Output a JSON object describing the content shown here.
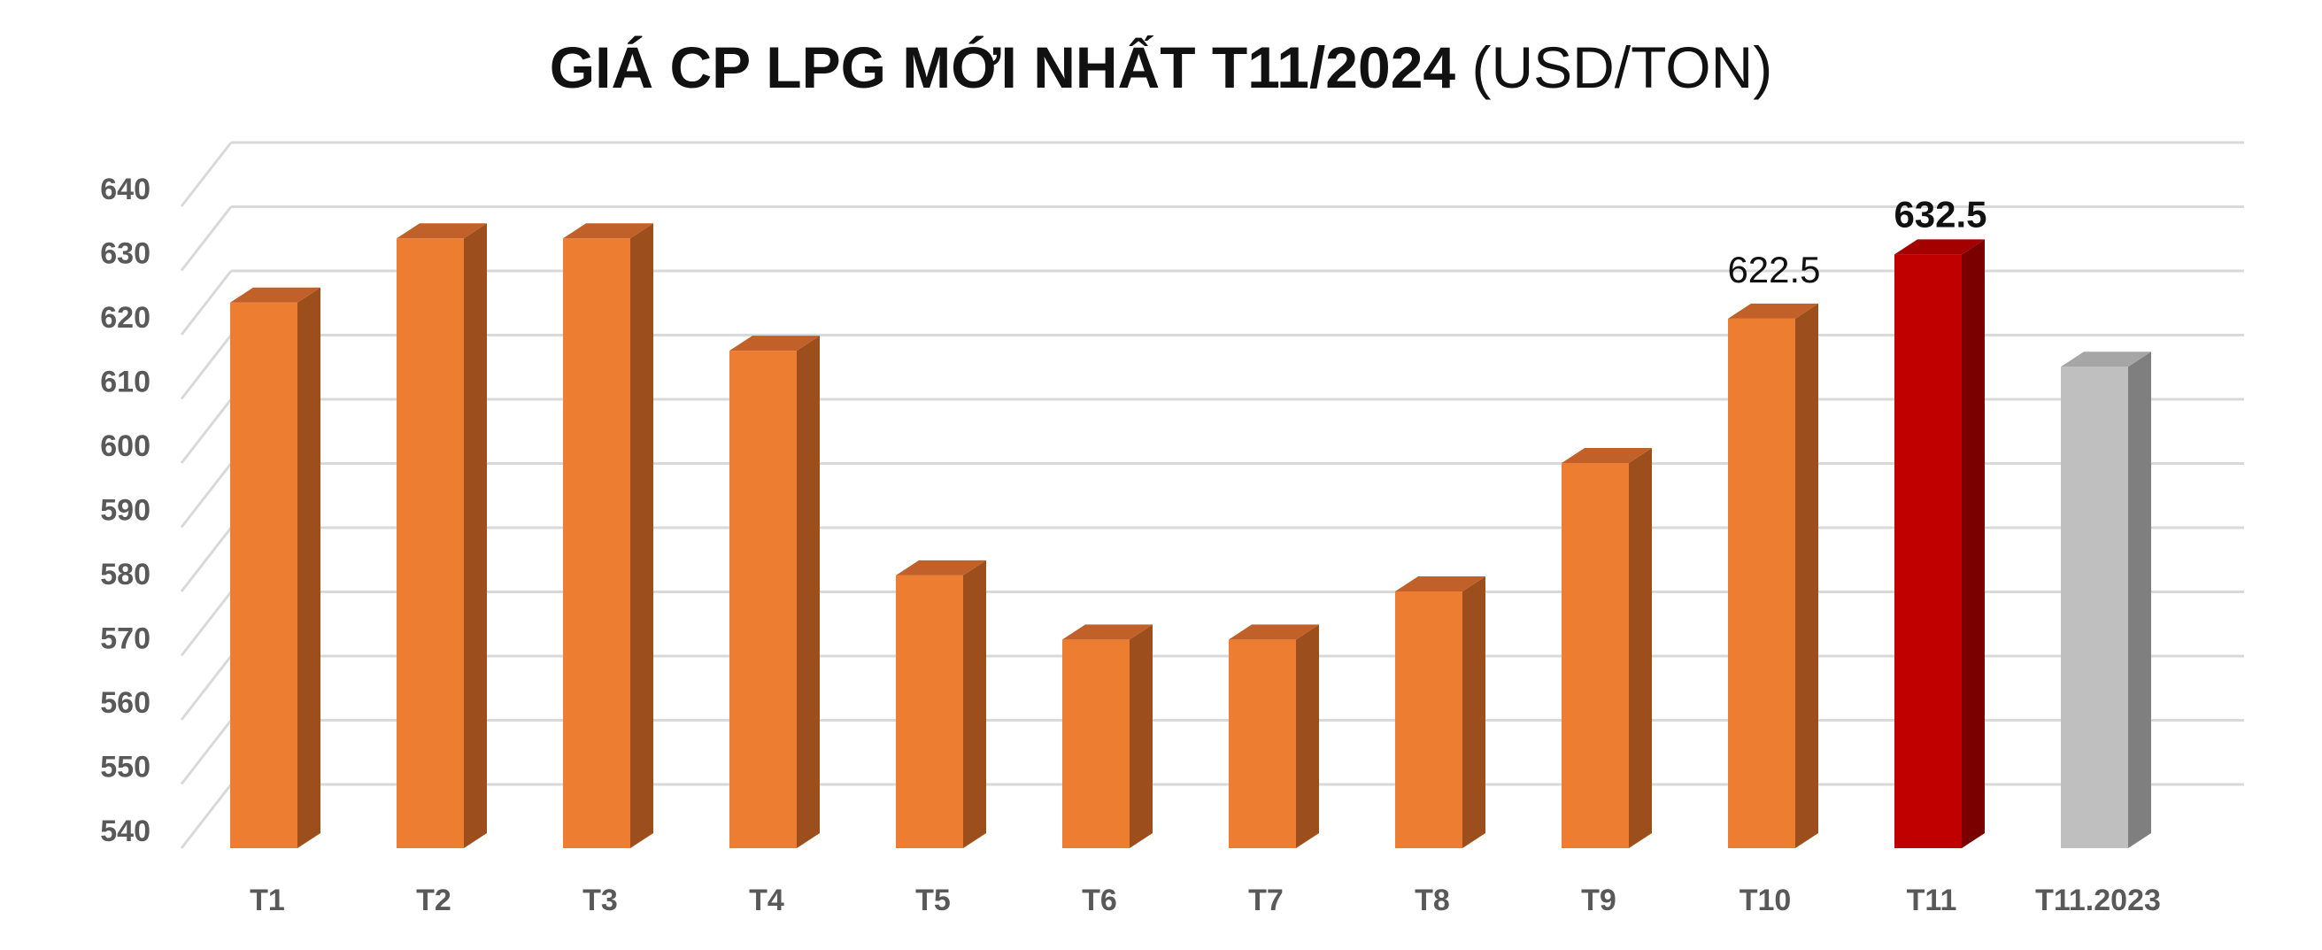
{
  "title": {
    "main": "GIÁ CP LPG MỚI NHẤT T11/2024",
    "unit": "(USD/TON)"
  },
  "colors": {
    "bar_front": "#ED7D31",
    "bar_side": "#9C4F1C",
    "bar_top": "#C2602A",
    "highlight_front": "#C00000",
    "highlight_side": "#7A0000",
    "highlight_top": "#A50000",
    "compare_front": "#BFBFBF",
    "compare_side": "#7F7F7F",
    "compare_top": "#A6A6A6",
    "grid": "#D9D9D9",
    "axis_text": "#595959"
  },
  "chart_data": {
    "type": "bar",
    "categories": [
      "T1",
      "T2",
      "T3",
      "T4",
      "T5",
      "T6",
      "T7",
      "T8",
      "T9",
      "T10",
      "T11",
      "T11.2023"
    ],
    "values": [
      625,
      635,
      635,
      617.5,
      582.5,
      572.5,
      572.5,
      580,
      600,
      622.5,
      632.5,
      615
    ],
    "ylim": [
      540,
      640
    ],
    "yticks": [
      "540",
      "550",
      "560",
      "570",
      "580",
      "590",
      "600",
      "610",
      "620",
      "630",
      "640"
    ],
    "data_labels": [
      {
        "category": "T10",
        "text": "622.5"
      },
      {
        "category": "T11",
        "text": "632.5"
      }
    ],
    "highlight": "T11",
    "comparison": "T11.2023",
    "grid": true,
    "style": "3d-column"
  }
}
